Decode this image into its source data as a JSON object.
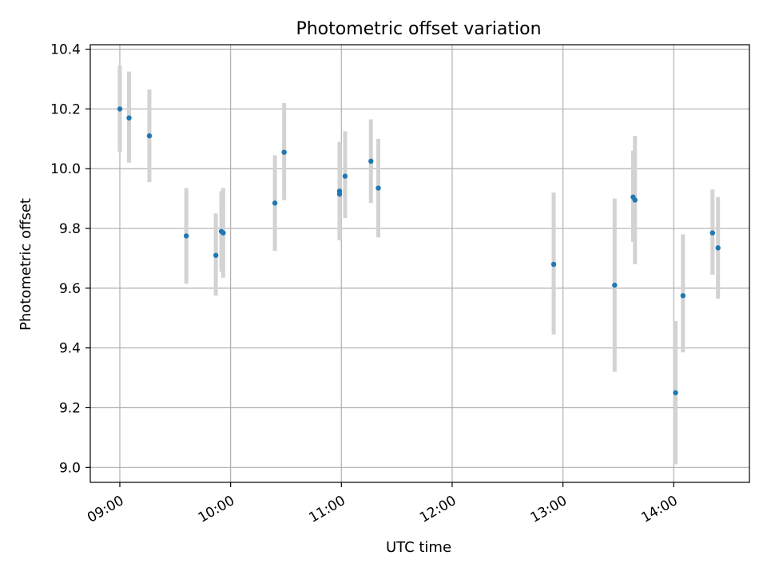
{
  "chart_data": {
    "type": "scatter",
    "title": "Photometric offset variation",
    "xlabel": "UTC time",
    "ylabel": "Photometric offset",
    "xlim": [
      "08:44",
      "14:41"
    ],
    "ylim": [
      8.95,
      10.415
    ],
    "x_ticks": [
      "09:00",
      "10:00",
      "11:00",
      "12:00",
      "13:00",
      "14:00"
    ],
    "y_ticks": [
      "9.0",
      "9.2",
      "9.4",
      "9.6",
      "9.8",
      "10.0",
      "10.2",
      "10.4"
    ],
    "grid": true,
    "marker_color": "#1f77b4",
    "errorbar_color": "#d3d3d3",
    "series": [
      {
        "points": [
          {
            "x": "09:00",
            "y": 10.2,
            "y_low": 10.055,
            "y_high": 10.345
          },
          {
            "x": "09:05",
            "y": 10.17,
            "y_low": 10.02,
            "y_high": 10.325
          },
          {
            "x": "09:16",
            "y": 10.11,
            "y_low": 9.955,
            "y_high": 10.265
          },
          {
            "x": "09:36",
            "y": 9.775,
            "y_low": 9.615,
            "y_high": 9.935
          },
          {
            "x": "09:52",
            "y": 9.71,
            "y_low": 9.575,
            "y_high": 9.85
          },
          {
            "x": "09:55",
            "y": 9.79,
            "y_low": 9.655,
            "y_high": 9.925
          },
          {
            "x": "09:56",
            "y": 9.785,
            "y_low": 9.635,
            "y_high": 9.935
          },
          {
            "x": "10:24",
            "y": 9.885,
            "y_low": 9.725,
            "y_high": 10.045
          },
          {
            "x": "10:29",
            "y": 10.055,
            "y_low": 9.895,
            "y_high": 10.22
          },
          {
            "x": "10:59",
            "y": 9.915,
            "y_low": 9.76,
            "y_high": 10.065
          },
          {
            "x": "10:59",
            "y": 9.925,
            "y_low": 9.76,
            "y_high": 10.09
          },
          {
            "x": "11:02",
            "y": 9.975,
            "y_low": 9.835,
            "y_high": 10.125
          },
          {
            "x": "11:16",
            "y": 10.025,
            "y_low": 9.885,
            "y_high": 10.165
          },
          {
            "x": "11:20",
            "y": 9.935,
            "y_low": 9.77,
            "y_high": 10.1
          },
          {
            "x": "12:55",
            "y": 9.68,
            "y_low": 9.445,
            "y_high": 9.92
          },
          {
            "x": "13:28",
            "y": 9.61,
            "y_low": 9.32,
            "y_high": 9.9
          },
          {
            "x": "13:38",
            "y": 9.905,
            "y_low": 9.755,
            "y_high": 10.06
          },
          {
            "x": "13:39",
            "y": 9.895,
            "y_low": 9.68,
            "y_high": 10.11
          },
          {
            "x": "14:01",
            "y": 9.25,
            "y_low": 9.01,
            "y_high": 9.49
          },
          {
            "x": "14:05",
            "y": 9.575,
            "y_low": 9.385,
            "y_high": 9.78
          },
          {
            "x": "14:21",
            "y": 9.785,
            "y_low": 9.645,
            "y_high": 9.93
          },
          {
            "x": "14:24",
            "y": 9.735,
            "y_low": 9.565,
            "y_high": 9.905
          }
        ]
      }
    ]
  }
}
